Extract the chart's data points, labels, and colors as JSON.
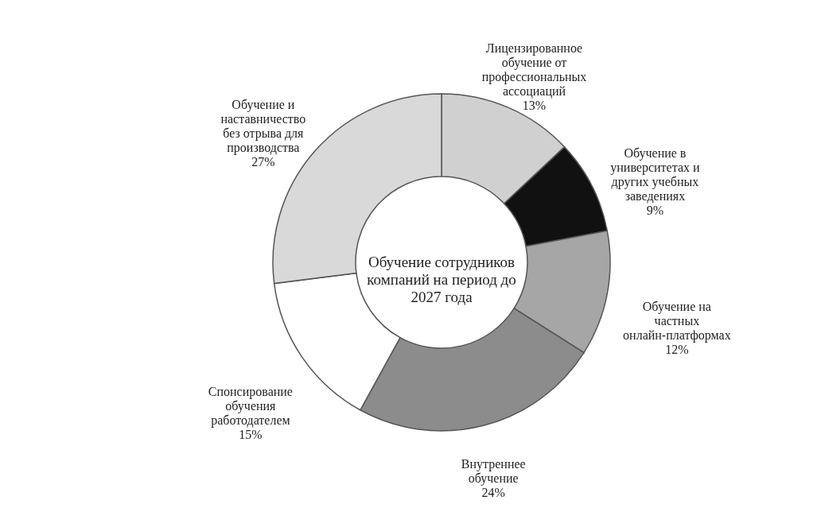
{
  "chart_data": {
    "type": "donut",
    "categories": [
      "Лицензированное обучение от профессиональных ассоциаций",
      "Обучение в университетах и других учебных заведениях",
      "Обучение на частных онлайн-платформах",
      "Внутреннее обучение",
      "Спонсирование обучения работодателем",
      "Обучение и наставничество без отрыва для производства"
    ],
    "values": [
      13,
      9,
      12,
      24,
      15,
      27
    ],
    "value_labels": [
      "13%",
      "9%",
      "12%",
      "24%",
      "15%",
      "27%"
    ],
    "colors": [
      "#d0d0d0",
      "#111111",
      "#a6a6a6",
      "#8c8c8c",
      "#ffffff",
      "#d9d9d9"
    ],
    "annotations": [
      "Обучение сотрудников компаний на период до 2027 года"
    ]
  }
}
